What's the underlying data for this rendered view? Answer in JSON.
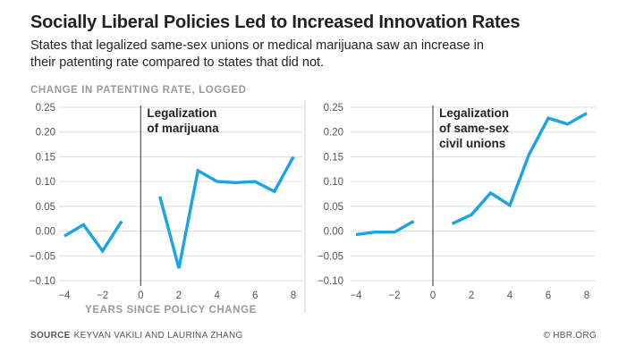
{
  "title": "Socially Liberal Policies Led to Increased Innovation Rates",
  "subtitle": "States that legalized same-sex unions or medical marijuana saw an increase in their patenting rate compared to states that did not.",
  "source_label": "SOURCE",
  "source_text": "KEYVAN VAKILI AND LAURINA ZHANG",
  "credit": "© HBR.ORG",
  "colors": {
    "line": "#1aa3e8",
    "grid": "#dddddd",
    "axis": "#555555"
  },
  "chart_data": [
    {
      "type": "line",
      "ylabel": "CHANGE IN PATENTING RATE, LOGGED",
      "xlabel": "YEARS SINCE POLICY CHANGE",
      "annotation": [
        "Legalization",
        "of marijuana"
      ],
      "xlim": [
        -4.5,
        9
      ],
      "ylim": [
        -0.1,
        0.25
      ],
      "xticks": [
        -4,
        -2,
        0,
        2,
        4,
        6,
        8
      ],
      "xtick_labels": [
        "−4",
        "−2",
        "0",
        "2",
        "4",
        "6",
        "8"
      ],
      "yticks": [
        -0.1,
        -0.05,
        0,
        0.05,
        0.1,
        0.15,
        0.2,
        0.25
      ],
      "ytick_labels": [
        "−0.10",
        "−0.05",
        "0.00",
        "0.05",
        "0.10",
        "0.15",
        "0.20",
        "0.25"
      ],
      "grid": true,
      "policy_line_x": 0,
      "segments": [
        {
          "x": [
            -4,
            -3,
            -2,
            -1
          ],
          "y": [
            -0.01,
            0.013,
            -0.04,
            0.02
          ]
        },
        {
          "x": [
            1,
            2,
            3,
            4,
            5,
            6,
            7,
            8
          ],
          "y": [
            0.07,
            -0.075,
            0.122,
            0.1,
            0.098,
            0.1,
            0.08,
            0.15
          ]
        }
      ]
    },
    {
      "type": "line",
      "ylabel": "",
      "xlabel": "",
      "annotation": [
        "Legalization",
        "of  same-sex",
        "civil unions"
      ],
      "xlim": [
        -4.5,
        9
      ],
      "ylim": [
        -0.1,
        0.25
      ],
      "xticks": [
        -4,
        -2,
        0,
        2,
        4,
        6,
        8
      ],
      "xtick_labels": [
        "−4",
        "−2",
        "0",
        "2",
        "4",
        "6",
        "8"
      ],
      "yticks": [
        -0.1,
        -0.05,
        0,
        0.05,
        0.1,
        0.15,
        0.2,
        0.25
      ],
      "ytick_labels": [
        "−0.10",
        "−0.05",
        "0.00",
        "0.05",
        "0.10",
        "0.15",
        "0.20",
        "0.25"
      ],
      "grid": true,
      "policy_line_x": 0,
      "segments": [
        {
          "x": [
            -4,
            -3,
            -2,
            -1
          ],
          "y": [
            -0.007,
            -0.002,
            -0.002,
            0.02
          ]
        },
        {
          "x": [
            1,
            2,
            3,
            4,
            5,
            6,
            7,
            8
          ],
          "y": [
            0.015,
            0.033,
            0.077,
            0.052,
            0.155,
            0.228,
            0.216,
            0.238
          ]
        }
      ]
    }
  ]
}
